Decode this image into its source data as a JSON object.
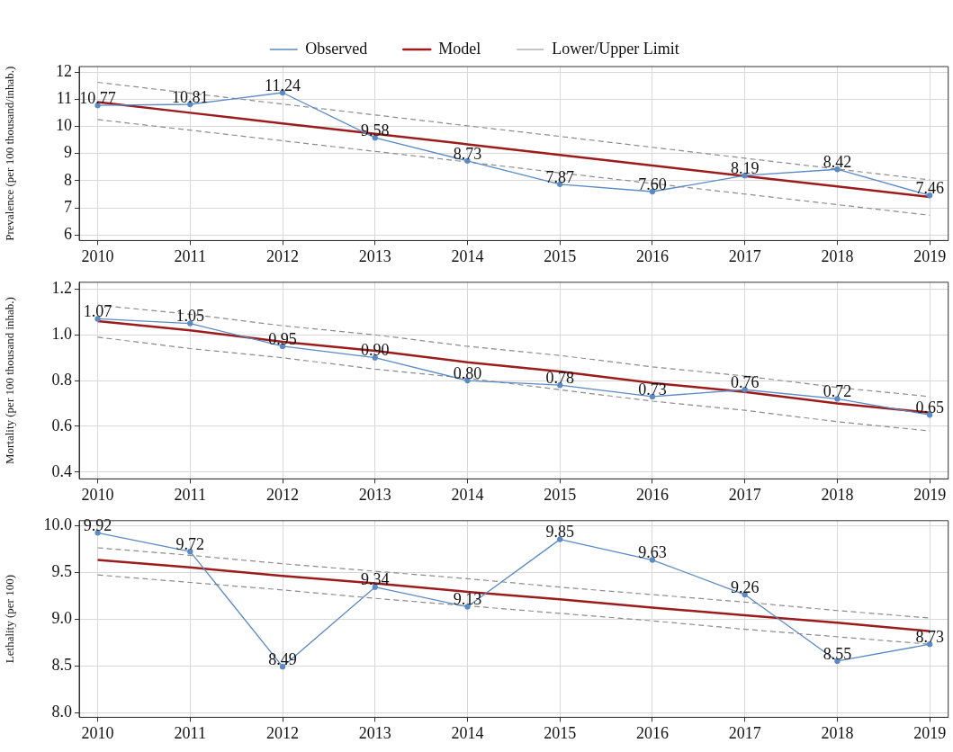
{
  "chart_data": [
    {
      "type": "line",
      "ylabel": "Prevalence (per 100 thousand/inhab.)",
      "x": [
        2010,
        2011,
        2012,
        2013,
        2014,
        2015,
        2016,
        2017,
        2018,
        2019
      ],
      "xlim": [
        2009.8,
        2019.2
      ],
      "xticks": [
        2010,
        2011,
        2012,
        2013,
        2014,
        2015,
        2016,
        2017,
        2018,
        2019
      ],
      "ylim": [
        5.8,
        12.2
      ],
      "yticks": [
        6,
        7,
        8,
        9,
        10,
        11,
        12
      ],
      "grid": true,
      "legend": "top",
      "series": [
        {
          "name": "Observed",
          "color": "#5b8ac4",
          "marker": "circle",
          "line_style": "solid",
          "values": [
            10.77,
            10.81,
            11.24,
            9.58,
            8.73,
            7.87,
            7.6,
            8.19,
            8.42,
            7.46
          ],
          "value_labels": [
            "10.77",
            "10.81",
            "11.24",
            "9.58",
            "8.73",
            "7.87",
            "7.60",
            "8.19",
            "8.42",
            "7.46"
          ]
        },
        {
          "name": "Model",
          "color": "#9b1c1c",
          "marker": "none",
          "line_style": "solid",
          "values": [
            10.89,
            10.5,
            10.11,
            9.73,
            9.34,
            8.95,
            8.56,
            8.17,
            7.79,
            7.4
          ]
        },
        {
          "name": "Lower/Upper Limit",
          "color": "#8c8c8c",
          "marker": "none",
          "line_style": "dashed",
          "values": [
            11.62,
            11.22,
            10.82,
            10.42,
            10.02,
            9.63,
            9.23,
            8.83,
            8.43,
            8.03
          ]
        },
        {
          "color": "#8c8c8c",
          "marker": "none",
          "line_style": "dashed",
          "values": [
            10.25,
            9.86,
            9.47,
            9.08,
            8.69,
            8.29,
            7.9,
            7.51,
            7.12,
            6.73
          ]
        }
      ]
    },
    {
      "type": "line",
      "ylabel": "Mortality (per 100 thousand inhab.)",
      "x": [
        2010,
        2011,
        2012,
        2013,
        2014,
        2015,
        2016,
        2017,
        2018,
        2019
      ],
      "xlim": [
        2009.8,
        2019.2
      ],
      "xticks": [
        2010,
        2011,
        2012,
        2013,
        2014,
        2015,
        2016,
        2017,
        2018,
        2019
      ],
      "ylim": [
        0.37,
        1.23
      ],
      "yticks": [
        0.4,
        0.6,
        0.8,
        {
          "value": 1,
          "label": "1.0"
        },
        1.2
      ],
      "grid": true,
      "series": [
        {
          "color": "#5b8ac4",
          "marker": "circle",
          "line_style": "solid",
          "values": [
            1.07,
            1.05,
            0.95,
            0.9,
            0.8,
            0.78,
            0.73,
            0.76,
            0.72,
            0.65
          ],
          "value_labels": [
            "1.07",
            "1.05",
            "0.95",
            "0.90",
            "0.80",
            "0.78",
            "0.73",
            "0.76",
            "0.72",
            "0.65"
          ]
        },
        {
          "color": "#9b1c1c",
          "marker": "none",
          "line_style": "solid",
          "values": [
            1.06,
            1.02,
            0.97,
            0.93,
            0.88,
            0.84,
            0.79,
            0.75,
            0.7,
            0.66
          ]
        },
        {
          "color": "#8c8c8c",
          "marker": "none",
          "line_style": "dashed",
          "values": [
            1.13,
            1.09,
            1.04,
            1.0,
            0.95,
            0.91,
            0.86,
            0.82,
            0.77,
            0.73
          ]
        },
        {
          "color": "#8c8c8c",
          "marker": "none",
          "line_style": "dashed",
          "values": [
            0.99,
            0.94,
            0.9,
            0.85,
            0.81,
            0.76,
            0.71,
            0.67,
            0.62,
            0.58
          ]
        }
      ]
    },
    {
      "type": "line",
      "ylabel": "Lethality (per 100)",
      "x": [
        2010,
        2011,
        2012,
        2013,
        2014,
        2015,
        2016,
        2017,
        2018,
        2019
      ],
      "xlim": [
        2009.8,
        2019.2
      ],
      "xticks": [
        2010,
        2011,
        2012,
        2013,
        2014,
        2015,
        2016,
        2017,
        2018,
        2019
      ],
      "ylim": [
        7.95,
        10.05
      ],
      "yticks": [
        {
          "value": 8,
          "label": "8.0"
        },
        8.5,
        {
          "value": 9,
          "label": "9.0"
        },
        9.5,
        {
          "value": 10,
          "label": "10.0"
        }
      ],
      "grid": true,
      "series": [
        {
          "color": "#5b8ac4",
          "marker": "circle",
          "line_style": "solid",
          "values": [
            9.92,
            9.72,
            8.49,
            9.34,
            9.13,
            9.85,
            9.63,
            9.26,
            8.55,
            8.73
          ],
          "value_labels": [
            "9.92",
            "9.72",
            "8.49",
            "9.34",
            "9.13",
            "9.85",
            "9.63",
            "9.26",
            "8.55",
            "8.73"
          ]
        },
        {
          "color": "#9b1c1c",
          "marker": "none",
          "line_style": "solid",
          "values": [
            9.63,
            9.55,
            9.46,
            9.38,
            9.29,
            9.21,
            9.12,
            9.04,
            8.96,
            8.87
          ]
        },
        {
          "color": "#8c8c8c",
          "marker": "none",
          "line_style": "dashed",
          "values": [
            9.76,
            9.68,
            9.59,
            9.51,
            9.43,
            9.34,
            9.26,
            9.18,
            9.09,
            9.01
          ]
        },
        {
          "color": "#8c8c8c",
          "marker": "none",
          "line_style": "dashed",
          "values": [
            9.47,
            9.39,
            9.31,
            9.22,
            9.14,
            9.06,
            8.98,
            8.89,
            8.81,
            8.73
          ]
        }
      ]
    }
  ]
}
